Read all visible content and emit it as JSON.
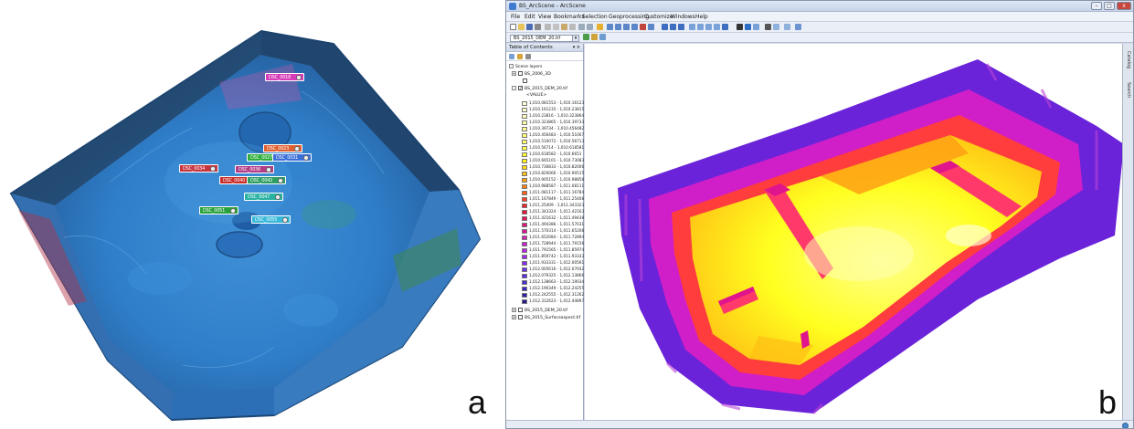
{
  "panel_a": {
    "label": "a",
    "tags": [
      {
        "text": "DSC_0018",
        "color": "#d63bb8"
      },
      {
        "text": "DSC_0023",
        "color": "#e06030"
      },
      {
        "text": "DSC_0027",
        "color": "#2fae3b"
      },
      {
        "text": "DSC_0031",
        "color": "#3a6fd8"
      },
      {
        "text": "DSC_0034",
        "color": "#c8343d"
      },
      {
        "text": "DSC_0036",
        "color": "#b23b86"
      },
      {
        "text": "DSC_0040",
        "color": "#c9302c"
      },
      {
        "text": "DSC_0042",
        "color": "#2e9f63"
      },
      {
        "text": "DSC_0047",
        "color": "#29b1a2"
      },
      {
        "text": "DSC_0051",
        "color": "#2aa23c"
      },
      {
        "text": "DSC_0055",
        "color": "#34b7d8"
      }
    ]
  },
  "panel_b": {
    "label": "b",
    "window": {
      "title": "BS_ArcScene - ArcScene",
      "controls": [
        "–",
        "□",
        "x"
      ]
    },
    "menu": [
      "File",
      "Edit",
      "View",
      "Bookmarks",
      "Selection",
      "Geoprocessing",
      "Customize",
      "Windows",
      "Help"
    ],
    "layer_combo": "BS_2015_DEM_20.tif",
    "toc": {
      "title": "Table of Contents",
      "pin_glyphs": "▾ ×",
      "scene_layers": "Scene layers",
      "layer_2006": "BS_2006_3D",
      "layer_2015": "BS_2015_DEM_20.tif",
      "value_heading": "<VALUE>",
      "legend": [
        {
          "label": "1,010.081553 - 1,010.161234",
          "color": "#ffffd8"
        },
        {
          "label": "1,010.161235 - 1,010.238155",
          "color": "#ffffc8"
        },
        {
          "label": "1,010.23816 - 1,010.323864",
          "color": "#ffffb8"
        },
        {
          "label": "1,010.323865 - 1,010.397333",
          "color": "#ffffa6"
        },
        {
          "label": "1,010.39734 - 1,010.456482",
          "color": "#ffff92"
        },
        {
          "label": "1,010.456483 - 1,010.51007",
          "color": "#ffff7e"
        },
        {
          "label": "1,010.510072 - 1,010.567139",
          "color": "#ffff6a"
        },
        {
          "label": "1,010.56714 - 1,010.618581",
          "color": "#ffff50"
        },
        {
          "label": "1,010.618582 - 1,010.6651",
          "color": "#ffff36"
        },
        {
          "label": "1,010.665101 - 1,010.730832",
          "color": "#ffef1c"
        },
        {
          "label": "1,010.730833 - 1,010.820065",
          "color": "#ffd814"
        },
        {
          "label": "1,010.820066 - 1,010.905151",
          "color": "#ffbd10"
        },
        {
          "label": "1,010.905152 - 1,010.988586",
          "color": "#ff9f10"
        },
        {
          "label": "1,010.988587 - 1,011.081116",
          "color": "#ff8014"
        },
        {
          "label": "1,011.081117 - 1,011.167848",
          "color": "#ff5e1c"
        },
        {
          "label": "1,011.167849 - 1,011.25408",
          "color": "#fb3e24"
        },
        {
          "label": "1,011.25409 - 1,011.343323",
          "color": "#f0202c"
        },
        {
          "label": "1,011.343324 - 1,011.421631",
          "color": "#e8163e"
        },
        {
          "label": "1,011.421632 - 1,011.494385",
          "color": "#e0145a"
        },
        {
          "label": "1,011.494386 - 1,011.570313",
          "color": "#da1478"
        },
        {
          "label": "1,011.570314 - 1,011.652083",
          "color": "#d61896"
        },
        {
          "label": "1,011.652084 - 1,011.728943",
          "color": "#d21eb4"
        },
        {
          "label": "1,011.728944 - 1,011.791564",
          "color": "#c822ce"
        },
        {
          "label": "1,011.791565 - 1,011.859741",
          "color": "#b426de"
        },
        {
          "label": "1,011.859742 - 1,011.933331",
          "color": "#9c2ae6"
        },
        {
          "label": "1,011.933331 - 1,012.005615",
          "color": "#842eea"
        },
        {
          "label": "1,012.005616 - 1,012.079324",
          "color": "#6c30ea"
        },
        {
          "label": "1,012.079325 - 1,012.138662",
          "color": "#5a2ee0"
        },
        {
          "label": "1,012.138663 - 1,012.190348",
          "color": "#4a2ad2"
        },
        {
          "label": "1,012.190349 - 1,012.242554",
          "color": "#3c26c0"
        },
        {
          "label": "1,012.242555 - 1,012.312622",
          "color": "#3020aa"
        },
        {
          "label": "1,012.312623 - 1,012.448975",
          "color": "#241a90"
        }
      ],
      "layer_2015_20": "BS_2015_DEM_20.tif",
      "layer_aspect": "BS_2015_Surfaceaspect.tif"
    },
    "side_tabs": [
      "Catalog",
      "Search"
    ]
  }
}
